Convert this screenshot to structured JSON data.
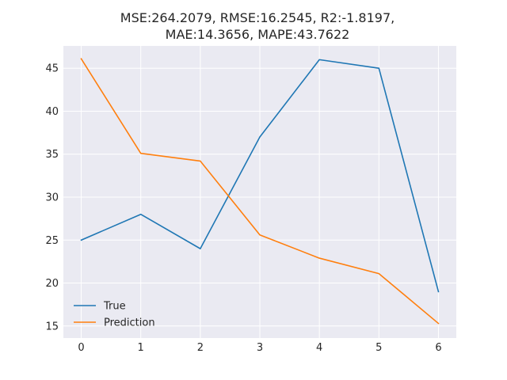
{
  "chart_data": {
    "type": "line",
    "title_lines": [
      "MSE:264.2079, RMSE:16.2545, R2:-1.8197,",
      "MAE:14.3656, MAPE:43.7622"
    ],
    "xlabel": "",
    "ylabel": "",
    "x": [
      0,
      1,
      2,
      3,
      4,
      5,
      6
    ],
    "xlim": [
      -0.3,
      6.3
    ],
    "ylim": [
      13.6,
      47.6
    ],
    "xticks": [
      0,
      1,
      2,
      3,
      4,
      5,
      6
    ],
    "yticks": [
      15,
      20,
      25,
      30,
      35,
      40,
      45
    ],
    "grid": true,
    "legend_position": "lower-left",
    "series": [
      {
        "name": "True",
        "color": "#1f77b4",
        "values": [
          25,
          28,
          24,
          37,
          46,
          45,
          19
        ]
      },
      {
        "name": "Prediction",
        "color": "#ff7f0e",
        "values": [
          46.1,
          35.1,
          34.2,
          25.6,
          22.9,
          21.1,
          15.3
        ]
      }
    ]
  }
}
